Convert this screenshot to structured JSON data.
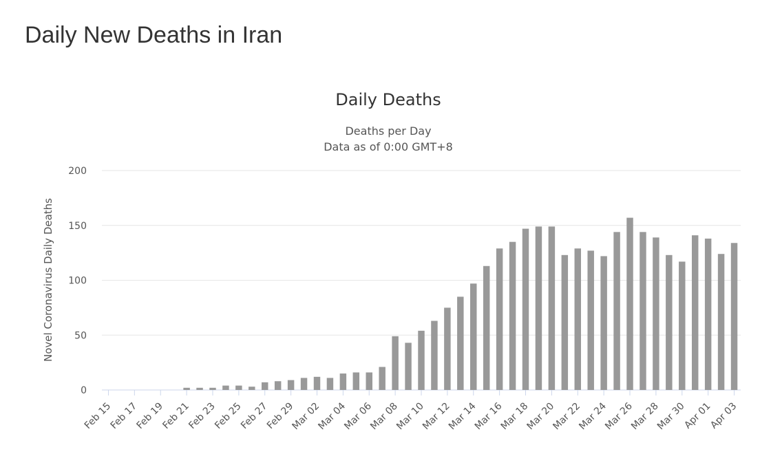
{
  "page": {
    "heading": "Daily New Deaths in Iran"
  },
  "chart_data": {
    "type": "bar",
    "title": "Daily Deaths",
    "subtitle": [
      "Deaths per Day",
      "Data as of 0:00 GMT+8"
    ],
    "ylabel": "Novel Coronavirus Daily Deaths",
    "xlabel": "",
    "ylim": [
      0,
      200
    ],
    "yticks": [
      0,
      50,
      100,
      150,
      200
    ],
    "grid": true,
    "legend": "none",
    "bar_color": "#999999",
    "categories": [
      "Feb 15",
      "Feb 16",
      "Feb 17",
      "Feb 18",
      "Feb 19",
      "Feb 20",
      "Feb 21",
      "Feb 22",
      "Feb 23",
      "Feb 24",
      "Feb 25",
      "Feb 26",
      "Feb 27",
      "Feb 28",
      "Feb 29",
      "Mar 01",
      "Mar 02",
      "Mar 03",
      "Mar 04",
      "Mar 05",
      "Mar 06",
      "Mar 07",
      "Mar 08",
      "Mar 09",
      "Mar 10",
      "Mar 11",
      "Mar 12",
      "Mar 13",
      "Mar 14",
      "Mar 15",
      "Mar 16",
      "Mar 17",
      "Mar 18",
      "Mar 19",
      "Mar 20",
      "Mar 21",
      "Mar 22",
      "Mar 23",
      "Mar 24",
      "Mar 25",
      "Mar 26",
      "Mar 27",
      "Mar 28",
      "Mar 29",
      "Mar 30",
      "Mar 31",
      "Apr 01",
      "Apr 02",
      "Apr 03"
    ],
    "tick_labels": [
      "Feb 15",
      "Feb 17",
      "Feb 19",
      "Feb 21",
      "Feb 23",
      "Feb 25",
      "Feb 27",
      "Feb 29",
      "Mar 02",
      "Mar 04",
      "Mar 06",
      "Mar 08",
      "Mar 10",
      "Mar 12",
      "Mar 14",
      "Mar 16",
      "Mar 18",
      "Mar 20",
      "Mar 22",
      "Mar 24",
      "Mar 26",
      "Mar 28",
      "Mar 30",
      "Apr 01",
      "Apr 03"
    ],
    "values": [
      0,
      0,
      0,
      0,
      0,
      0,
      2,
      2,
      2,
      4,
      4,
      3,
      7,
      8,
      9,
      11,
      12,
      11,
      15,
      16,
      16,
      21,
      49,
      43,
      54,
      63,
      75,
      85,
      97,
      113,
      129,
      135,
      147,
      149,
      149,
      123,
      129,
      127,
      122,
      144,
      157,
      144,
      139,
      123,
      117,
      141,
      138,
      124,
      134
    ]
  }
}
